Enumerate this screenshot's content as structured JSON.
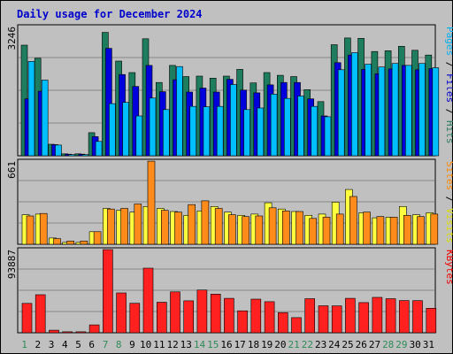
{
  "chart_data": {
    "type": "bar",
    "title": "Daily usage for December 2024",
    "days": [
      "1",
      "2",
      "3",
      "4",
      "5",
      "6",
      "7",
      "8",
      "9",
      "10",
      "11",
      "12",
      "13",
      "14",
      "15",
      "16",
      "17",
      "18",
      "19",
      "20",
      "21",
      "22",
      "23",
      "24",
      "25",
      "26",
      "27",
      "28",
      "29",
      "30",
      "31"
    ],
    "weekend_days": [
      "1",
      "7",
      "8",
      "14",
      "15",
      "21",
      "22",
      "28",
      "29"
    ],
    "panels": [
      {
        "id": "requests",
        "ymax_label": "3246",
        "ymax": 3246,
        "labels": [
          {
            "text": "Pages",
            "color": "#00b0f0"
          },
          {
            "text": " / ",
            "color": "#000000"
          },
          {
            "text": "Files",
            "color": "#0000cc"
          },
          {
            "text": " / ",
            "color": "#000000"
          },
          {
            "text": "Hits",
            "color": "#2e7d64"
          }
        ],
        "series": [
          {
            "name": "Hits",
            "color": "#1e7d5e",
            "values": [
              2780,
              2450,
              290,
              50,
              50,
              580,
              3100,
              2380,
              2090,
              2940,
              1840,
              2270,
              1990,
              2000,
              1950,
              2000,
              2170,
              1830,
              2090,
              2020,
              1990,
              1660,
              1360,
              2790,
              2960,
              2950,
              2620,
              2640,
              2750,
              2650,
              2530
            ]
          },
          {
            "name": "Files",
            "color": "#0000dd",
            "values": [
              1430,
              1620,
              280,
              40,
              40,
              480,
              2700,
              2040,
              1740,
              2270,
              1610,
              1910,
              1600,
              1700,
              1600,
              1920,
              1650,
              1580,
              1780,
              1840,
              1840,
              1430,
              1000,
              2340,
              2530,
              2170,
              2060,
              2180,
              2270,
              2160,
              2190
            ]
          },
          {
            "name": "Pages",
            "color": "#00bfff",
            "values": [
              2370,
              1900,
              270,
              30,
              30,
              360,
              1310,
              1340,
              1000,
              1450,
              1160,
              2240,
              1240,
              1230,
              1240,
              1790,
              1160,
              1200,
              1550,
              1440,
              1500,
              1240,
              980,
              2160,
              2590,
              2300,
              2230,
              2320,
              2270,
              2320,
              2210
            ]
          }
        ]
      },
      {
        "id": "visits",
        "ymax_label": "661",
        "ymax": 661,
        "labels": [
          {
            "text": "Sites",
            "color": "#ff8800"
          },
          {
            "text": " / ",
            "color": "#000000"
          },
          {
            "text": "Visits",
            "color": "#dddd00"
          }
        ],
        "series": [
          {
            "name": "Visits",
            "color": "#ffff40",
            "values": [
              235,
              240,
              50,
              15,
              15,
              100,
              285,
              270,
              255,
              300,
              285,
              260,
              230,
              265,
              300,
              255,
              230,
              240,
              330,
              280,
              260,
              230,
              240,
              335,
              435,
              250,
              210,
              215,
              300,
              235,
              250
            ]
          },
          {
            "name": "Sites",
            "color": "#ff8c1a",
            "values": [
              225,
              245,
              45,
              25,
              25,
              100,
              280,
              285,
              320,
              660,
              270,
              255,
              315,
              345,
              285,
              235,
              220,
              225,
              290,
              265,
              260,
              205,
              215,
              240,
              380,
              255,
              220,
              215,
              230,
              220,
              240
            ]
          }
        ]
      },
      {
        "id": "kbytes",
        "ymax_label": "93887",
        "ymax": 93887,
        "labels": [
          {
            "text": "KBytes",
            "color": "#ee0000"
          }
        ],
        "series": [
          {
            "name": "KBytes",
            "color": "#ff2020",
            "values": [
              33200,
              42900,
              2870,
              1100,
              1100,
              8900,
              93887,
              44900,
              33300,
              72900,
              34500,
              46100,
              36100,
              48200,
              43600,
              38900,
              24800,
              38000,
              35100,
              22800,
              17100,
              38500,
              30500,
              30400,
              38900,
              34100,
              40000,
              38500,
              36400,
              36300,
              27700
            ]
          }
        ]
      }
    ]
  }
}
